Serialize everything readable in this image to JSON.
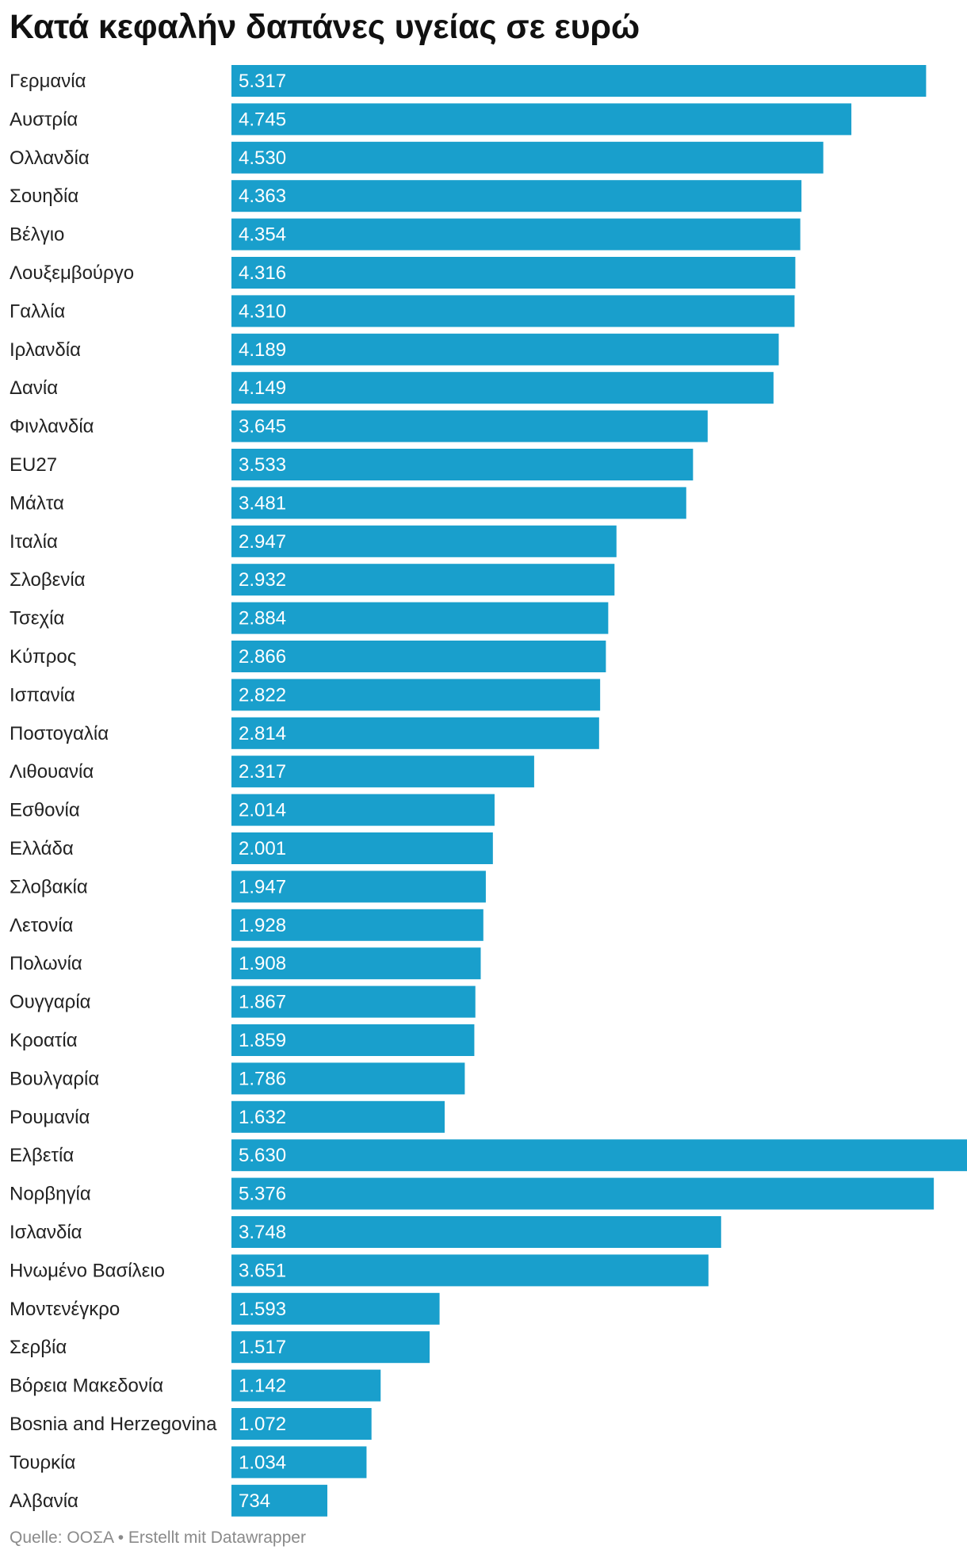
{
  "chart_data": {
    "type": "bar",
    "orientation": "horizontal",
    "title": "Κατά κεφαλήν δαπάνες υγείας σε ευρώ",
    "categories": [
      "Γερμανία",
      "Αυστρία",
      "Ολλανδία",
      "Σουηδία",
      "Βέλγιο",
      "Λουξεμβούργο",
      "Γαλλία",
      "Ιρλανδία",
      "Δανία",
      "Φινλανδία",
      "EU27",
      "Μάλτα",
      "Ιταλία",
      "Σλοβενία",
      "Τσεχία",
      "Κύπρος",
      "Ισπανία",
      "Ποστογαλία",
      "Λιθουανία",
      "Εσθονία",
      "Ελλάδα",
      "Σλοβακία",
      "Λετονία",
      "Πολωνία",
      "Ουγγαρία",
      "Κροατία",
      "Βουλγαρία",
      "Ρουμανία",
      "Ελβετία",
      "Νορβηγία",
      "Ισλανδία",
      "Ηνωμένο Βασίλειο",
      "Μοντενέγκρο",
      "Σερβία",
      "Βόρεια Μακεδονία",
      "Bosnia and Herzegovina",
      "Τουρκία",
      "Αλβανία"
    ],
    "values": [
      5317,
      4745,
      4530,
      4363,
      4354,
      4316,
      4310,
      4189,
      4149,
      3645,
      3533,
      3481,
      2947,
      2932,
      2884,
      2866,
      2822,
      2814,
      2317,
      2014,
      2001,
      1947,
      1928,
      1908,
      1867,
      1859,
      1786,
      1632,
      5630,
      5376,
      3748,
      3651,
      1593,
      1517,
      1142,
      1072,
      1034,
      734
    ],
    "value_labels": [
      "5.317",
      "4.745",
      "4.530",
      "4.363",
      "4.354",
      "4.316",
      "4.310",
      "4.189",
      "4.149",
      "3.645",
      "3.533",
      "3.481",
      "2.947",
      "2.932",
      "2.884",
      "2.866",
      "2.822",
      "2.814",
      "2.317",
      "2.014",
      "2.001",
      "1.947",
      "1.928",
      "1.908",
      "1.867",
      "1.859",
      "1.786",
      "1.632",
      "5.630",
      "5.376",
      "3.748",
      "3.651",
      "1.593",
      "1.517",
      "1.142",
      "1.072",
      "1.034",
      "734"
    ],
    "xlim": [
      0,
      5630
    ],
    "xlabel": "",
    "ylabel": "",
    "grid": false,
    "legend": "none",
    "bar_color": "#199fcc",
    "label_color": "#ffffff"
  },
  "footer": {
    "source": "Quelle: ΟΟΣΑ • Erstellt mit Datawrapper"
  },
  "colors": {
    "background": "#ffffff",
    "text": "#222222",
    "footer": "#8a8a8a"
  }
}
